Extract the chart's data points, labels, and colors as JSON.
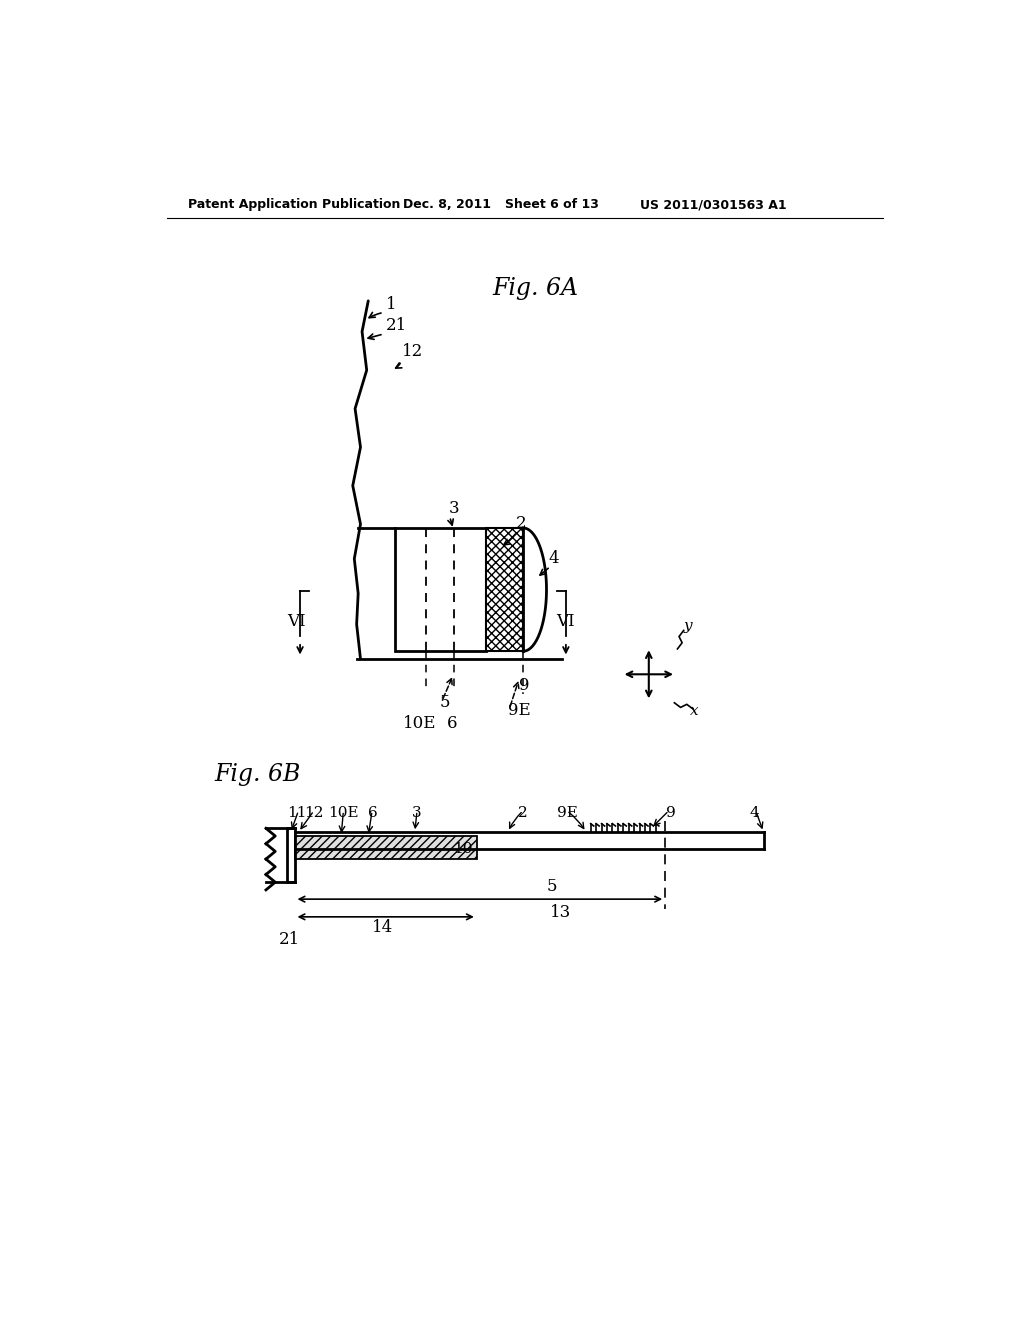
{
  "bg_color": "#ffffff",
  "header_text": "Patent Application Publication",
  "header_date": "Dec. 8, 2011",
  "header_sheet": "Sheet 6 of 13",
  "header_patent": "US 2011/0301563 A1",
  "fig6A_title": "Fig. 6A",
  "fig6B_title": "Fig. 6B"
}
